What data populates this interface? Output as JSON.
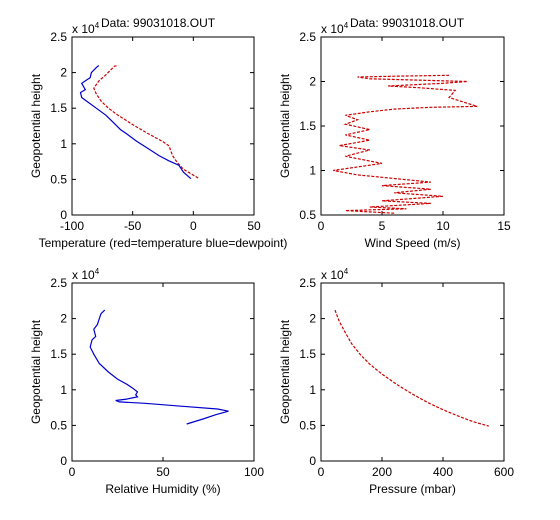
{
  "figure": {
    "background": "#ffffff"
  },
  "chart_data": [
    {
      "type": "line",
      "title": "Data: 99031018.OUT",
      "xlabel": "Temperature (red=temperature blue=dewpoint)",
      "ylabel": "Geopotential height",
      "exponent_label": "x 10",
      "exponent": "4",
      "xlim": [
        -100,
        50
      ],
      "ylim": [
        0,
        25000
      ],
      "xticks": [
        "-100",
        "-50",
        "0",
        "50"
      ],
      "yticks": [
        "0",
        "0.5",
        "1",
        "1.5",
        "2",
        "2.5"
      ],
      "xtick_values": [
        -100,
        -50,
        0,
        50
      ],
      "ytick_values": [
        0,
        5000,
        10000,
        15000,
        20000,
        25000
      ],
      "series": [
        {
          "color": "#cc0000",
          "style": "dashed",
          "points": [
            [
              4,
              5200
            ],
            [
              -2,
              5800
            ],
            [
              -8,
              6400
            ],
            [
              -13,
              7300
            ],
            [
              -17,
              8300
            ],
            [
              -19,
              9200
            ],
            [
              -20,
              9700
            ],
            [
              -25,
              10300
            ],
            [
              -38,
              11500
            ],
            [
              -50,
              12700
            ],
            [
              -62,
              14000
            ],
            [
              -70,
              15000
            ],
            [
              -76,
              16000
            ],
            [
              -80,
              17000
            ],
            [
              -82,
              17800
            ],
            [
              -78,
              18800
            ],
            [
              -72,
              19700
            ],
            [
              -68,
              20400
            ],
            [
              -65,
              20900
            ],
            [
              -62,
              21000
            ]
          ]
        },
        {
          "color": "#0000cc",
          "style": "solid",
          "points": [
            [
              -2,
              5100
            ],
            [
              -8,
              6000
            ],
            [
              -12,
              7000
            ],
            [
              -20,
              7600
            ],
            [
              -28,
              8300
            ],
            [
              -37,
              9300
            ],
            [
              -47,
              10400
            ],
            [
              -55,
              11400
            ],
            [
              -60,
              12000
            ],
            [
              -66,
              13000
            ],
            [
              -72,
              14000
            ],
            [
              -80,
              15000
            ],
            [
              -88,
              16000
            ],
            [
              -92,
              16500
            ],
            [
              -93,
              17200
            ],
            [
              -89,
              17600
            ],
            [
              -92,
              18500
            ],
            [
              -85,
              19300
            ],
            [
              -84,
              20000
            ],
            [
              -80,
              20700
            ],
            [
              -78,
              21000
            ]
          ]
        }
      ]
    },
    {
      "type": "line",
      "title": "Data: 99031018.OUT",
      "xlabel": "Wind Speed (m/s)",
      "ylabel": "Geopotential height",
      "exponent_label": "x 10",
      "exponent": "4",
      "xlim": [
        0,
        15
      ],
      "ylim": [
        5000,
        25000
      ],
      "xticks": [
        "0",
        "5",
        "10",
        "15"
      ],
      "yticks": [
        "0.5",
        "1",
        "1.5",
        "2",
        "2.5"
      ],
      "xtick_values": [
        0,
        5,
        10,
        15
      ],
      "ytick_values": [
        5000,
        10000,
        15000,
        20000,
        25000
      ],
      "series": [
        {
          "color": "#cc0000",
          "style": "dashed",
          "points": [
            [
              6,
              5200
            ],
            [
              2,
              5500
            ],
            [
              7,
              5700
            ],
            [
              4,
              5900
            ],
            [
              9,
              6300
            ],
            [
              5,
              6600
            ],
            [
              10,
              7100
            ],
            [
              6,
              7500
            ],
            [
              9,
              7900
            ],
            [
              5,
              8300
            ],
            [
              9,
              8700
            ],
            [
              6,
              9100
            ],
            [
              3,
              9500
            ],
            [
              1,
              10000
            ],
            [
              5,
              10800
            ],
            [
              2,
              11600
            ],
            [
              4,
              12300
            ],
            [
              1.5,
              12800
            ],
            [
              4,
              13400
            ],
            [
              2,
              14000
            ],
            [
              4,
              14600
            ],
            [
              2,
              15200
            ],
            [
              3,
              15700
            ],
            [
              2,
              16200
            ],
            [
              4,
              16600
            ],
            [
              6,
              16900
            ],
            [
              9,
              17100
            ],
            [
              12.8,
              17200
            ],
            [
              10.5,
              18200
            ],
            [
              11,
              19000
            ],
            [
              8,
              19300
            ],
            [
              5.5,
              19500
            ],
            [
              10,
              19800
            ],
            [
              12,
              20000
            ],
            [
              4,
              20300
            ],
            [
              3,
              20500
            ],
            [
              6,
              20600
            ],
            [
              10.5,
              20700
            ]
          ]
        }
      ]
    },
    {
      "type": "line",
      "title": "",
      "xlabel": "Relative Humidity (%)",
      "ylabel": "Geopotential height",
      "exponent_label": "x 10",
      "exponent": "4",
      "xlim": [
        0,
        100
      ],
      "ylim": [
        0,
        25000
      ],
      "xticks": [
        "0",
        "50",
        "100"
      ],
      "yticks": [
        "0",
        "0.5",
        "1",
        "1.5",
        "2",
        "2.5"
      ],
      "xtick_values": [
        0,
        50,
        100
      ],
      "ytick_values": [
        0,
        5000,
        10000,
        15000,
        20000,
        25000
      ],
      "series": [
        {
          "color": "#0000cc",
          "style": "solid",
          "points": [
            [
              63,
              5200
            ],
            [
              72,
              5900
            ],
            [
              79,
              6500
            ],
            [
              86,
              7000
            ],
            [
              80,
              7300
            ],
            [
              60,
              7700
            ],
            [
              40,
              8100
            ],
            [
              26,
              8300
            ],
            [
              24,
              8500
            ],
            [
              30,
              8700
            ],
            [
              36,
              9000
            ],
            [
              35,
              9300
            ],
            [
              36,
              9700
            ],
            [
              33,
              10300
            ],
            [
              30,
              10800
            ],
            [
              25,
              11500
            ],
            [
              20,
              12500
            ],
            [
              15,
              13700
            ],
            [
              12,
              15000
            ],
            [
              10,
              16000
            ],
            [
              11,
              17000
            ],
            [
              13,
              17500
            ],
            [
              12,
              18500
            ],
            [
              14,
              19200
            ],
            [
              15,
              20000
            ],
            [
              16,
              20700
            ],
            [
              18,
              21200
            ]
          ]
        }
      ]
    },
    {
      "type": "line",
      "title": "",
      "xlabel": "Pressure (mbar)",
      "ylabel": "Geopotential height",
      "exponent_label": "x 10",
      "exponent": "4",
      "xlim": [
        0,
        600
      ],
      "ylim": [
        0,
        25000
      ],
      "xticks": [
        "0",
        "200",
        "400",
        "600"
      ],
      "yticks": [
        "0",
        "0.5",
        "1",
        "1.5",
        "2",
        "2.5"
      ],
      "xtick_values": [
        0,
        200,
        400,
        600
      ],
      "ytick_values": [
        0,
        5000,
        10000,
        15000,
        20000,
        25000
      ],
      "series": [
        {
          "color": "#cc0000",
          "style": "dashed",
          "points": [
            [
              46,
              21200
            ],
            [
              60,
              19600
            ],
            [
              80,
              18000
            ],
            [
              100,
              16500
            ],
            [
              130,
              14900
            ],
            [
              160,
              13600
            ],
            [
              200,
              12200
            ],
            [
              250,
              10700
            ],
            [
              300,
              9400
            ],
            [
              350,
              8200
            ],
            [
              400,
              7200
            ],
            [
              450,
              6300
            ],
            [
              500,
              5500
            ],
            [
              550,
              4900
            ]
          ]
        }
      ]
    }
  ]
}
